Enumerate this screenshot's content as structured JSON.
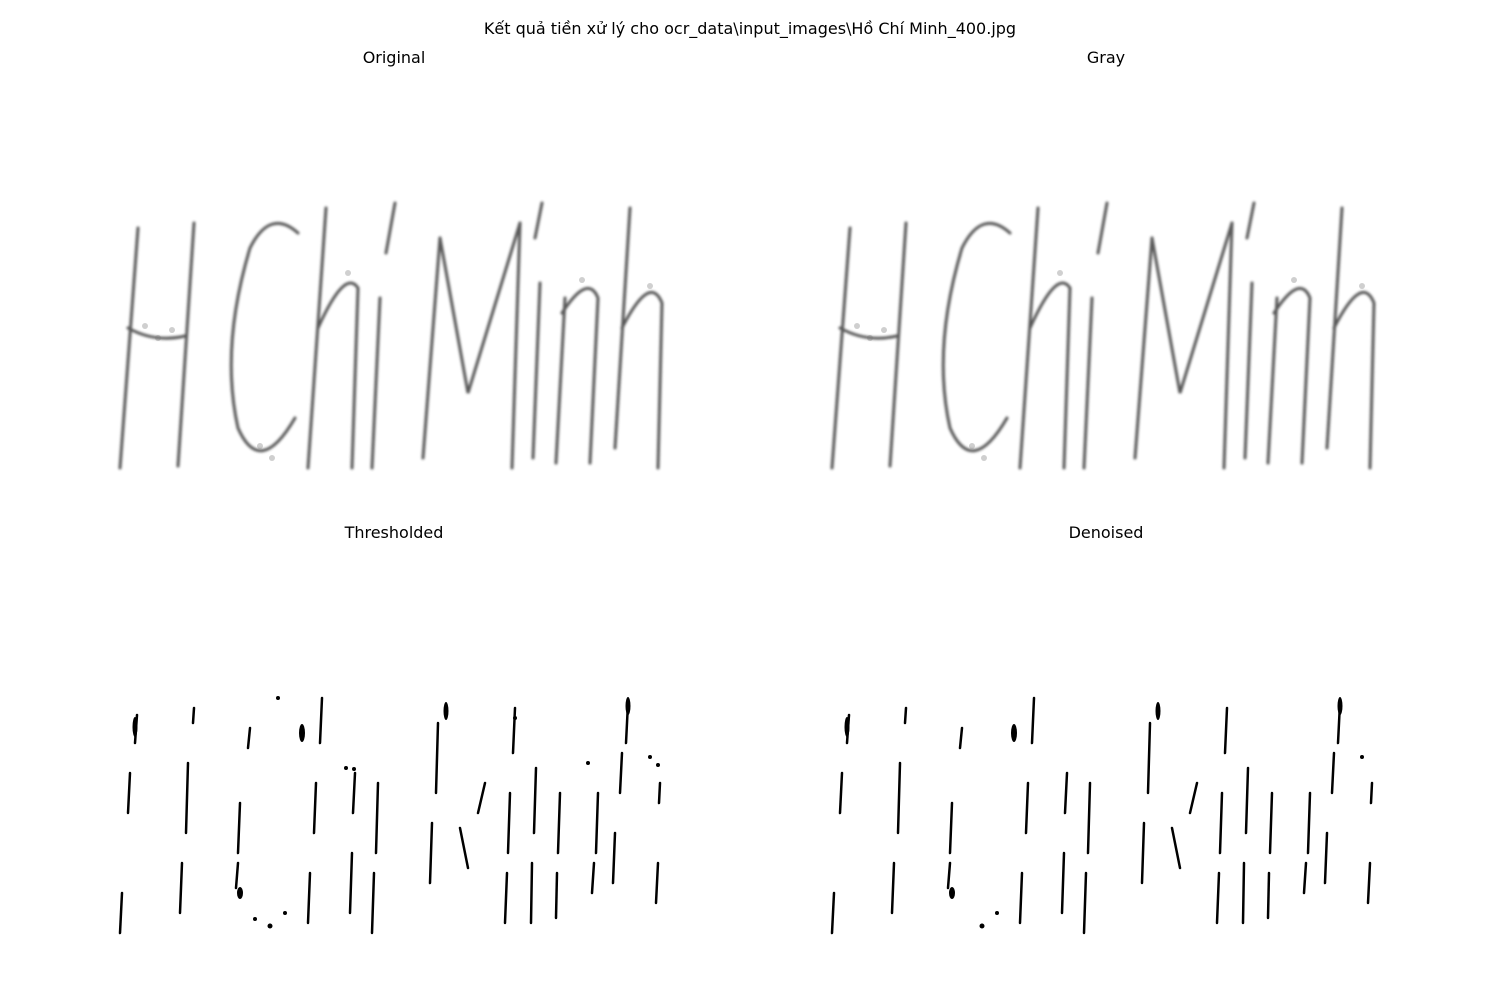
{
  "figure": {
    "suptitle": "Kết quả tiền xử lý cho ocr_data\\input_images\\Hồ Chí Minh_400.jpg"
  },
  "panels": [
    {
      "id": "original",
      "title": "Original",
      "ink": "#333333"
    },
    {
      "id": "gray",
      "title": "Gray",
      "ink": "#333333"
    },
    {
      "id": "thresholded",
      "title": "Thresholded",
      "ink": "#000000"
    },
    {
      "id": "denoised",
      "title": "Denoised",
      "ink": "#000000"
    }
  ]
}
